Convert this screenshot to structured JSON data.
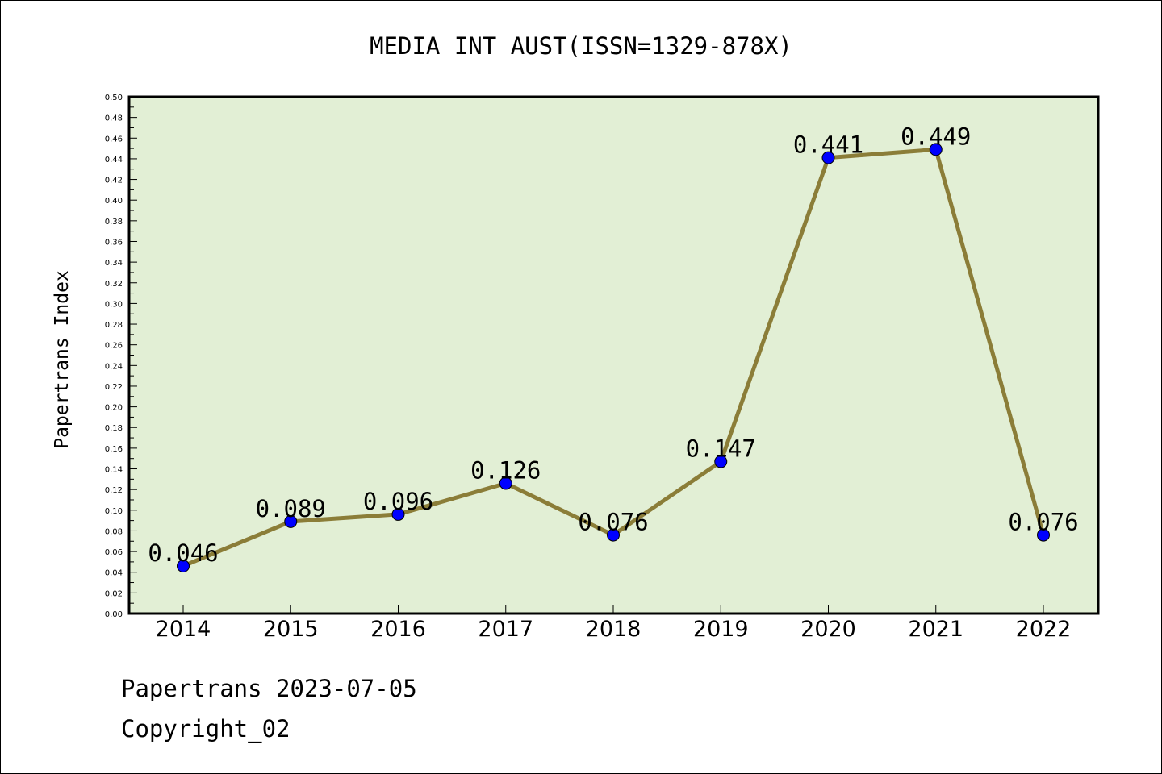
{
  "chart_data": {
    "type": "line",
    "title": "MEDIA INT AUST(ISSN=1329-878X)",
    "xlabel": "",
    "ylabel": "Papertrans Index",
    "categories": [
      "2014",
      "2015",
      "2016",
      "2017",
      "2018",
      "2019",
      "2020",
      "2021",
      "2022"
    ],
    "values": [
      0.046,
      0.089,
      0.096,
      0.126,
      0.076,
      0.147,
      0.441,
      0.449,
      0.076
    ],
    "data_labels": [
      "0.046",
      "0.089",
      "0.096",
      "0.126",
      "0.076",
      "0.147",
      "0.441",
      "0.449",
      "0.076"
    ],
    "ylim": [
      0,
      0.5
    ],
    "yticks": [
      "0.00",
      "0.02",
      "0.04",
      "0.06",
      "0.08",
      "0.10",
      "0.12",
      "0.14",
      "0.16",
      "0.18",
      "0.20",
      "0.22",
      "0.24",
      "0.26",
      "0.28",
      "0.30",
      "0.32",
      "0.34",
      "0.36",
      "0.38",
      "0.40",
      "0.42",
      "0.44",
      "0.46",
      "0.48",
      "0.50"
    ],
    "grid": false,
    "legend": "none",
    "colors": {
      "plot_background": "#e2efd5",
      "line": "#8b7d38",
      "marker": "#0000ff"
    }
  },
  "footer": {
    "line1": "Papertrans 2023-07-05",
    "line2": "Copyright_02"
  }
}
